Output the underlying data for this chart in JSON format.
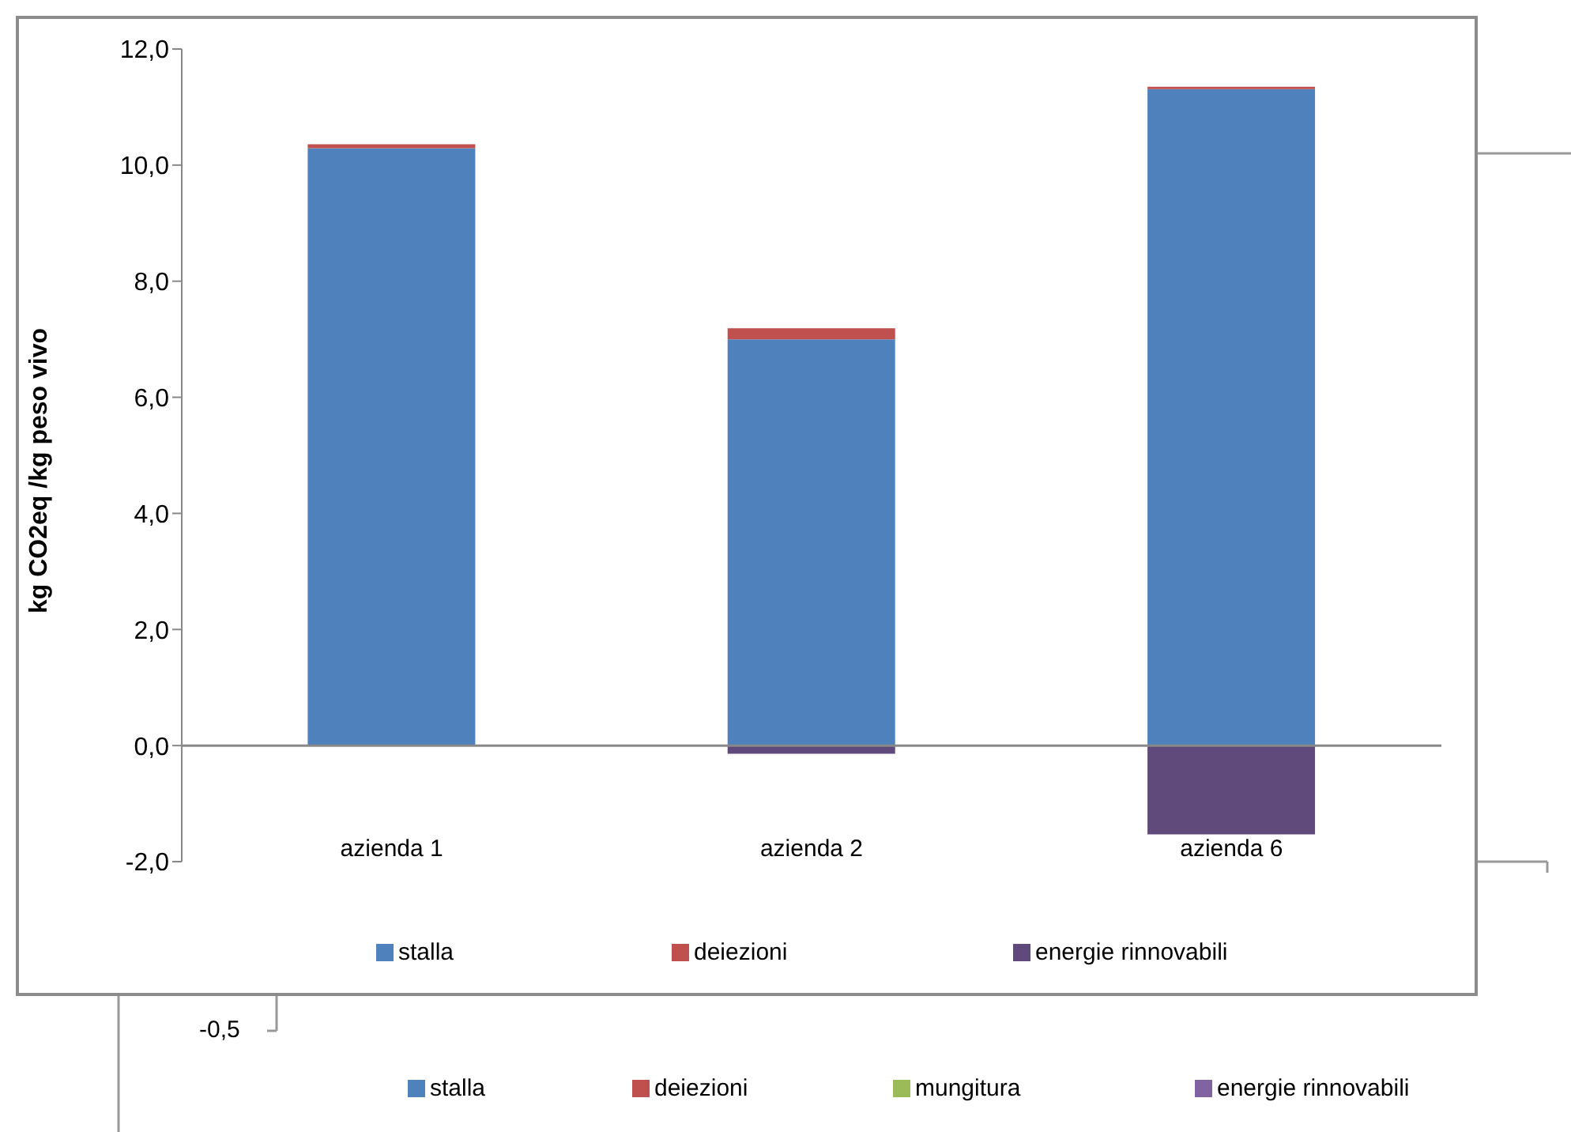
{
  "chart_data": [
    {
      "type": "bar",
      "stacked": true,
      "ylabel": "kg CO2eq /kg peso vivo",
      "categories": [
        "azienda 1",
        "azienda 2",
        "azienda 6"
      ],
      "series": [
        {
          "name": "stalla",
          "color": "#4f81bd",
          "values": [
            10.29,
            7.0,
            11.31
          ]
        },
        {
          "name": "deiezioni",
          "color": "#c0504d",
          "values": [
            0.07,
            0.19,
            0.04
          ]
        },
        {
          "name": "energie rinnovabili",
          "color": "#604a7b",
          "values": [
            null,
            -0.14,
            -1.53
          ]
        }
      ],
      "ylim": [
        -2,
        12
      ],
      "yticks": [
        {
          "value": -2,
          "label": "-2,0"
        },
        {
          "value": 0,
          "label": "0,0"
        },
        {
          "value": 2,
          "label": "2,0"
        },
        {
          "value": 4,
          "label": "4,0"
        },
        {
          "value": 6,
          "label": "6,0"
        },
        {
          "value": 8,
          "label": "8,0"
        },
        {
          "value": 10,
          "label": "10,0"
        },
        {
          "value": 12,
          "label": "12,0"
        }
      ],
      "ref_lines": [
        {
          "axis": "y",
          "value": 0,
          "color": "#888888"
        }
      ],
      "legend": "bottom",
      "grid": false
    },
    {
      "type": "other",
      "series": [
        {
          "name": "stalla",
          "color": "#4f81bd"
        },
        {
          "name": "deiezioni",
          "color": "#c0504d"
        },
        {
          "name": "mungitura",
          "color": "#9bbb59"
        },
        {
          "name": "energie rinnovabili",
          "color": "#8064a2"
        }
      ],
      "annotations": [
        "-0,5"
      ],
      "legend": "bottom"
    }
  ]
}
